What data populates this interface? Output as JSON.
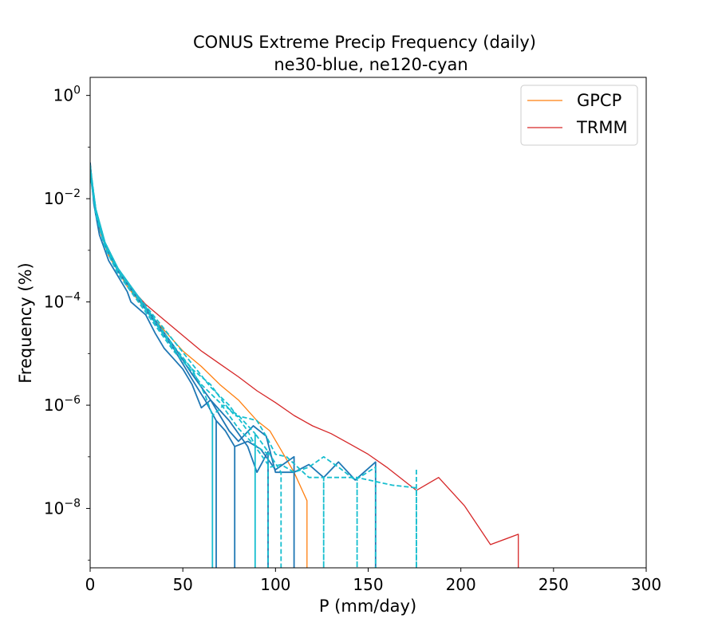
{
  "chart_data": {
    "type": "line",
    "title": "CONUS Extreme Precip Frequency (daily)",
    "subtitle": "ne30-blue, ne120-cyan",
    "xlabel": "P (mm/day)",
    "ylabel": "Frequency (%)",
    "xlim": [
      0,
      300
    ],
    "ylim_log10": [
      -9.15,
      0.35
    ],
    "x_ticks": [
      0,
      50,
      100,
      150,
      200,
      250,
      300
    ],
    "x_tick_labels": [
      "0",
      "50",
      "100",
      "150",
      "200",
      "250",
      "300"
    ],
    "y_ticks_log10": [
      0,
      -2,
      -4,
      -6,
      -8
    ],
    "y_tick_base": "10",
    "y_tick_exponents": [
      "0",
      "−2",
      "−4",
      "−6",
      "−8"
    ],
    "legend": {
      "position": "top-right",
      "entries": [
        "GPCP",
        "TRMM"
      ]
    },
    "colors": {
      "GPCP": "#ff7f0e",
      "TRMM": "#d62728",
      "ne30": "#1f77b4",
      "ne120": "#17becf",
      "axes": "#000000"
    },
    "series": [
      {
        "name": "TRMM",
        "color": "#d62728",
        "style": "solid",
        "legend": true,
        "x": [
          0,
          2,
          5,
          10,
          15,
          20,
          30,
          40,
          50,
          60,
          70,
          80,
          90,
          100,
          110,
          120,
          130,
          140,
          150,
          160,
          176,
          188,
          202,
          216,
          231,
          231
        ],
        "log10y": [
          -1.3,
          -2.0,
          -2.6,
          -3.1,
          -3.4,
          -3.65,
          -4.05,
          -4.35,
          -4.65,
          -4.95,
          -5.2,
          -5.45,
          -5.72,
          -5.95,
          -6.2,
          -6.4,
          -6.55,
          -6.75,
          -6.95,
          -7.2,
          -7.65,
          -7.4,
          -7.95,
          -8.7,
          -8.5,
          -9.15
        ]
      },
      {
        "name": "GPCP",
        "color": "#ff7f0e",
        "style": "solid",
        "legend": true,
        "x": [
          0,
          2,
          5,
          10,
          15,
          20,
          30,
          40,
          50,
          60,
          70,
          80,
          90,
          97,
          110,
          117,
          117
        ],
        "log10y": [
          -1.3,
          -2.0,
          -2.6,
          -3.1,
          -3.4,
          -3.7,
          -4.15,
          -4.55,
          -4.95,
          -5.25,
          -5.6,
          -5.9,
          -6.3,
          -6.5,
          -7.3,
          -7.85,
          -9.15
        ]
      },
      {
        "name": "ne30 member 1",
        "color": "#1f77b4",
        "style": "solid",
        "legend": false,
        "x": [
          0,
          2,
          5,
          10,
          15,
          20,
          22,
          30,
          35,
          40,
          45,
          50,
          55,
          60,
          65,
          70,
          75,
          80,
          88,
          95,
          100,
          110,
          118,
          126,
          134,
          143,
          154,
          154
        ],
        "log10y": [
          -1.3,
          -2.1,
          -2.7,
          -3.2,
          -3.5,
          -3.8,
          -4.0,
          -4.25,
          -4.6,
          -4.9,
          -5.1,
          -5.3,
          -5.6,
          -6.05,
          -5.9,
          -6.2,
          -6.5,
          -6.7,
          -6.4,
          -6.6,
          -7.3,
          -7.3,
          -7.15,
          -7.4,
          -7.1,
          -7.45,
          -7.1,
          -9.15
        ]
      },
      {
        "name": "ne30 member 2",
        "color": "#1f77b4",
        "style": "solid",
        "legend": false,
        "x": [
          0,
          3,
          8,
          15,
          25,
          35,
          45,
          55,
          62,
          68,
          68,
          68,
          73,
          78,
          78,
          78,
          85,
          92,
          100,
          110,
          110
        ],
        "log10y": [
          -1.5,
          -2.3,
          -2.9,
          -3.4,
          -3.9,
          -4.4,
          -4.9,
          -5.5,
          -5.9,
          -6.3,
          -9.15,
          -6.3,
          -6.5,
          -6.8,
          -9.15,
          -6.8,
          -6.7,
          -6.85,
          -7.25,
          -7.0,
          -9.15
        ]
      },
      {
        "name": "ne30 member 3",
        "color": "#1f77b4",
        "style": "solid",
        "legend": false,
        "x": [
          0,
          3,
          8,
          15,
          25,
          35,
          45,
          55,
          65,
          75,
          85,
          90,
          96,
          96
        ],
        "log10y": [
          -1.4,
          -2.2,
          -2.85,
          -3.35,
          -3.85,
          -4.35,
          -4.85,
          -5.4,
          -5.9,
          -6.3,
          -6.8,
          -7.3,
          -6.9,
          -9.15
        ]
      },
      {
        "name": "ne120 member 1",
        "color": "#17becf",
        "style": "dashed",
        "legend": false,
        "x": [
          0,
          3,
          8,
          15,
          25,
          35,
          45,
          55,
          65,
          75,
          85,
          90,
          97,
          103,
          110,
          118,
          126,
          134,
          143,
          154,
          154
        ],
        "log10y": [
          -1.35,
          -2.2,
          -2.85,
          -3.35,
          -3.85,
          -4.3,
          -4.75,
          -5.2,
          -5.65,
          -6.0,
          -6.5,
          -6.85,
          -7.2,
          -7.15,
          -7.3,
          -7.2,
          -7.0,
          -7.2,
          -7.45,
          -7.2,
          -9.15
        ]
      },
      {
        "name": "ne120 member 2",
        "color": "#17becf",
        "style": "dashed",
        "legend": false,
        "x": [
          0,
          3,
          8,
          15,
          25,
          35,
          45,
          55,
          62,
          66,
          66,
          66,
          72,
          80,
          89,
          89,
          89,
          96,
          103,
          103
        ],
        "log10y": [
          -1.45,
          -2.25,
          -2.9,
          -3.4,
          -3.9,
          -4.4,
          -4.9,
          -5.3,
          -5.8,
          -6.2,
          -9.15,
          -6.2,
          -6.0,
          -6.2,
          -6.55,
          -9.15,
          -6.55,
          -6.9,
          -7.3,
          -9.15
        ]
      },
      {
        "name": "ne120 member 3",
        "color": "#17becf",
        "style": "dashed",
        "legend": false,
        "x": [
          0,
          3,
          8,
          15,
          25,
          35,
          45,
          55,
          65,
          72,
          78,
          85,
          90,
          95,
          100,
          106,
          112,
          118,
          126,
          126,
          126,
          144,
          144,
          144,
          163,
          176,
          176
        ],
        "log10y": [
          -1.4,
          -2.2,
          -2.85,
          -3.35,
          -3.85,
          -4.35,
          -4.85,
          -5.3,
          -5.6,
          -5.95,
          -6.2,
          -6.25,
          -6.3,
          -6.6,
          -6.95,
          -7.0,
          -7.2,
          -7.4,
          -7.4,
          -9.15,
          -7.4,
          -7.4,
          -9.15,
          -7.4,
          -7.55,
          -7.6,
          -9.15
        ]
      },
      {
        "name": "ne120 member 4",
        "color": "#17becf",
        "style": "dashed",
        "legend": false,
        "x": [
          0,
          3,
          8,
          15,
          25,
          35,
          45,
          55,
          60,
          70,
          80,
          88,
          96,
          96
        ],
        "log10y": [
          -1.5,
          -2.3,
          -2.95,
          -3.45,
          -3.95,
          -4.45,
          -4.95,
          -5.35,
          -5.6,
          -5.95,
          -6.45,
          -6.75,
          -6.95,
          -9.15
        ]
      },
      {
        "name": "ne120 member 5",
        "color": "#17becf",
        "style": "dashed",
        "legend": false,
        "x": [
          176,
          176
        ],
        "log10y": [
          -7.25,
          -9.15
        ]
      }
    ]
  }
}
